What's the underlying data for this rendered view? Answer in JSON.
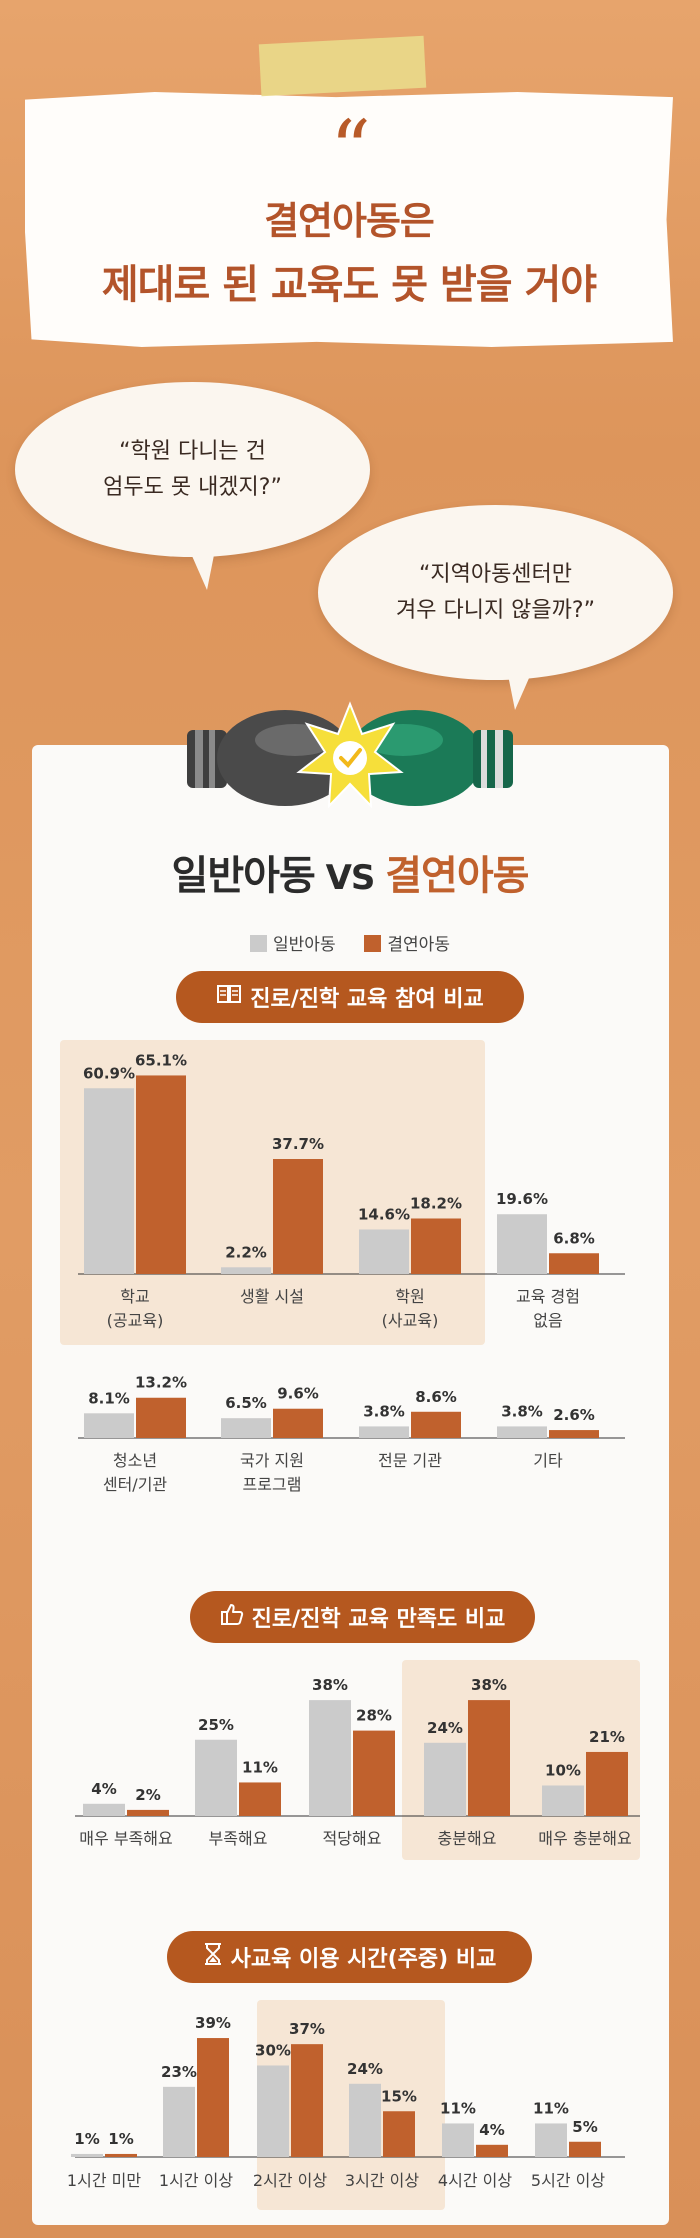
{
  "header": {
    "quote_mark": "“",
    "title_line1": "결연아동은",
    "title_line2": "제대로 된 교육도 못 받을 거야"
  },
  "bubbles": [
    {
      "line1": "“학원 다니는 건",
      "line2": "엄두도 못 내겠지?”"
    },
    {
      "line1": "“지역아동센터만",
      "line2": "겨우 다니지 않을까?”"
    }
  ],
  "comparison": {
    "title_left": "일반아동",
    "title_vs": " VS ",
    "title_right": "결연아동"
  },
  "legend": [
    {
      "label": "일반아동",
      "color": "#cbcbcb"
    },
    {
      "label": "결연아동",
      "color": "#c0612d"
    }
  ],
  "colors": {
    "general": "#cbcbcb",
    "sponsored": "#c0612d",
    "highlight": "#f6e6d5",
    "pill": "#b5581f"
  },
  "sections": [
    {
      "title": "진로/진학 교육 참여 비교",
      "icon": "book-icon"
    },
    {
      "title": "진로/진학 교육 만족도 비교",
      "icon": "thumbs-up-icon"
    },
    {
      "title": "사교육 이용 시간(주중) 비교",
      "icon": "hourglass-icon"
    }
  ],
  "chart_data": [
    {
      "type": "bar",
      "title": "진로/진학 교육 참여 비교",
      "categories": [
        "학교\n(공교육)",
        "생활 시설",
        "학원\n(사교육)",
        "교육 경험\n없음",
        "청소년\n센터/기관",
        "국가 지원\n프로그램",
        "전문 기관",
        "기타"
      ],
      "series": [
        {
          "name": "일반아동",
          "values": [
            60.9,
            2.2,
            14.6,
            19.6,
            8.1,
            6.5,
            3.8,
            3.8
          ]
        },
        {
          "name": "결연아동",
          "values": [
            65.1,
            37.7,
            18.2,
            6.8,
            13.2,
            9.6,
            8.6,
            2.6
          ]
        }
      ],
      "labels": {
        "일반아동": [
          "60.9%",
          "2.2%",
          "14.6%",
          "19.6%",
          "8.1%",
          "6.5%",
          "3.8%",
          "3.8%"
        ],
        "결연아동": [
          "65.1%",
          "37.7%",
          "18.2%",
          "6.8%",
          "13.2%",
          "9.6%",
          "8.6%",
          "2.6%"
        ]
      },
      "highlighted_categories": [
        "학교\n(공교육)",
        "생활 시설",
        "학원\n(사교육)"
      ],
      "unit": "%",
      "grid": false
    },
    {
      "type": "bar",
      "title": "진로/진학 교육 만족도 비교",
      "categories": [
        "매우 부족해요",
        "부족해요",
        "적당해요",
        "충분해요",
        "매우 충분해요"
      ],
      "series": [
        {
          "name": "일반아동",
          "values": [
            4,
            25,
            38,
            24,
            10
          ]
        },
        {
          "name": "결연아동",
          "values": [
            2,
            11,
            28,
            38,
            21
          ]
        }
      ],
      "labels": {
        "일반아동": [
          "4%",
          "25%",
          "38%",
          "24%",
          "10%"
        ],
        "결연아동": [
          "2%",
          "11%",
          "28%",
          "38%",
          "21%"
        ]
      },
      "highlighted_categories": [
        "충분해요",
        "매우 충분해요"
      ],
      "unit": "%",
      "grid": false
    },
    {
      "type": "bar",
      "title": "사교육 이용 시간(주중) 비교",
      "categories": [
        "1시간 미만",
        "1시간 이상",
        "2시간 이상",
        "3시간 이상",
        "4시간 이상",
        "5시간 이상"
      ],
      "series": [
        {
          "name": "일반아동",
          "values": [
            1,
            23,
            30,
            24,
            11,
            11
          ]
        },
        {
          "name": "결연아동",
          "values": [
            1,
            39,
            37,
            15,
            4,
            5
          ]
        }
      ],
      "labels": {
        "일반아동": [
          "1%",
          "23%",
          "30%",
          "24%",
          "11%",
          "11%"
        ],
        "결연아동": [
          "1%",
          "39%",
          "37%",
          "15%",
          "4%",
          "5%"
        ]
      },
      "highlighted_categories": [
        "2시간 이상",
        "3시간 이상"
      ],
      "unit": "%",
      "grid": false
    }
  ]
}
